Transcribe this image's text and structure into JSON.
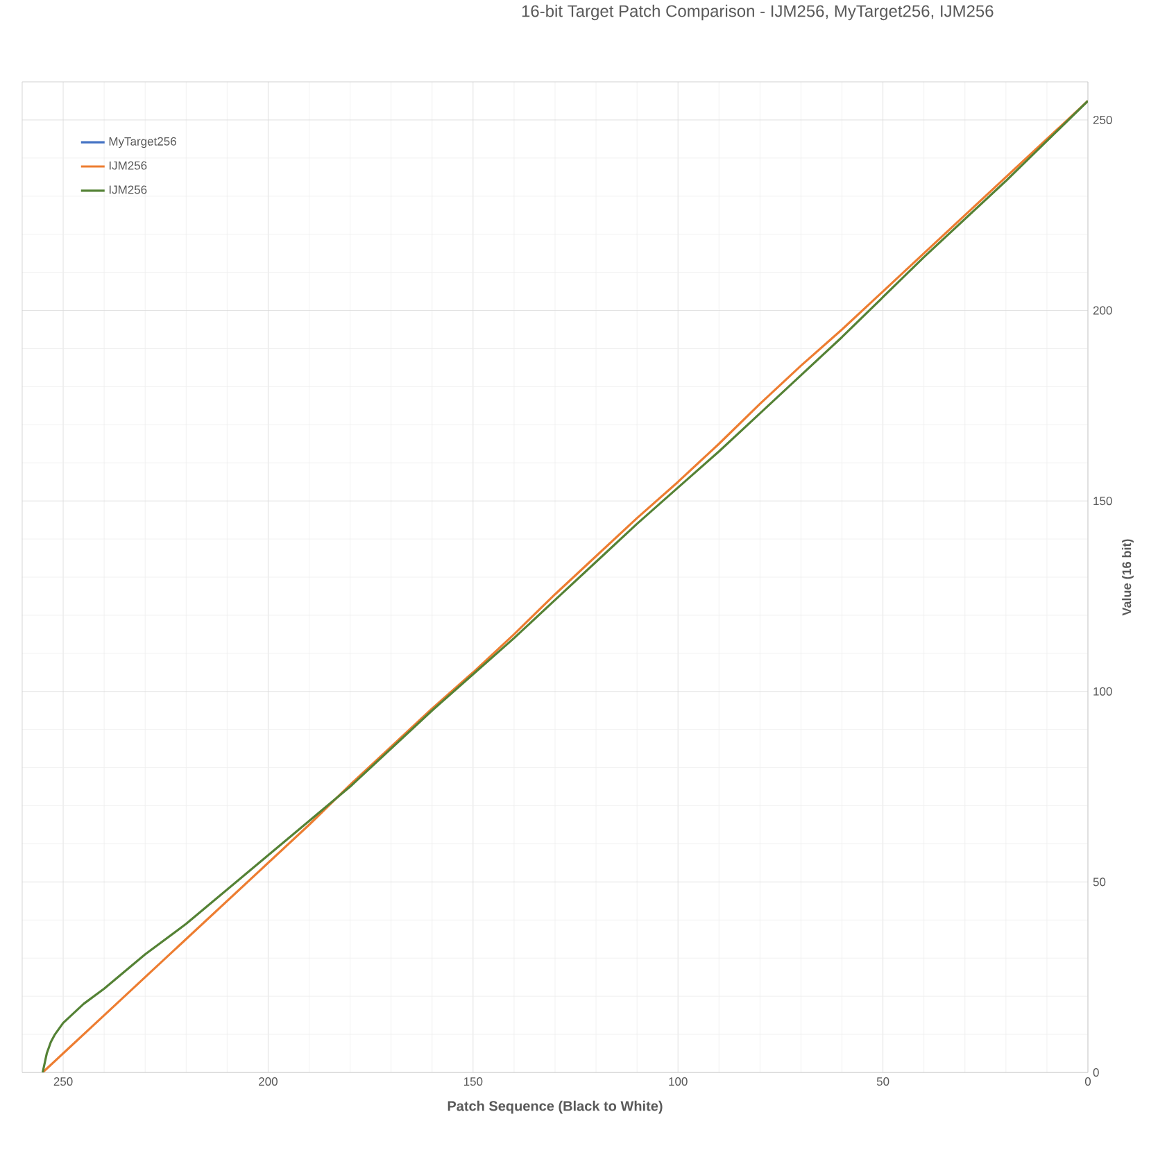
{
  "chart_data": {
    "type": "line",
    "title": "16-bit Target Patch Comparison - IJM256, MyTarget256, IJM256",
    "xlabel": "Patch Sequence (Black to White)",
    "ylabel": "Value (16 bit)",
    "x": [
      255,
      254,
      253,
      252,
      250,
      245,
      240,
      230,
      220,
      210,
      200,
      190,
      180,
      170,
      160,
      150,
      140,
      130,
      120,
      110,
      100,
      90,
      80,
      70,
      60,
      50,
      40,
      30,
      20,
      10,
      0
    ],
    "series": [
      {
        "name": "MyTarget256",
        "color": "#4472c4",
        "values": [
          null,
          null,
          null,
          null,
          null,
          null,
          null,
          null,
          null,
          null,
          null,
          null,
          null,
          null,
          null,
          null,
          null,
          null,
          null,
          null,
          null,
          null,
          null,
          null,
          null,
          null,
          null,
          null,
          null,
          null,
          null
        ]
      },
      {
        "name": "IJM256",
        "color": "#ed7d31",
        "values": [
          0,
          1,
          2,
          3,
          5,
          10,
          15,
          25,
          35,
          45,
          55,
          65,
          75.5,
          85.5,
          95.5,
          105,
          115,
          125.5,
          135.5,
          145.5,
          155,
          165,
          175.5,
          185.5,
          195,
          205,
          215,
          225,
          235,
          245,
          255
        ]
      },
      {
        "name": "IJM256",
        "color": "#548235",
        "values": [
          0,
          5,
          8,
          10,
          13,
          18,
          22,
          31,
          39,
          48,
          57,
          66,
          75,
          85,
          95,
          104.5,
          114,
          124,
          134,
          144,
          153.5,
          163,
          173,
          183,
          193,
          203.5,
          214,
          224,
          234,
          244.5,
          255
        ]
      }
    ],
    "xlim": [
      260,
      0
    ],
    "ylim": [
      0,
      260
    ],
    "xticks": [
      250,
      200,
      150,
      100,
      50,
      0
    ],
    "yticks": [
      0,
      50,
      100,
      150,
      200,
      250
    ],
    "grid": true,
    "legend": "top left",
    "marker": "none",
    "line_style": "solid"
  }
}
